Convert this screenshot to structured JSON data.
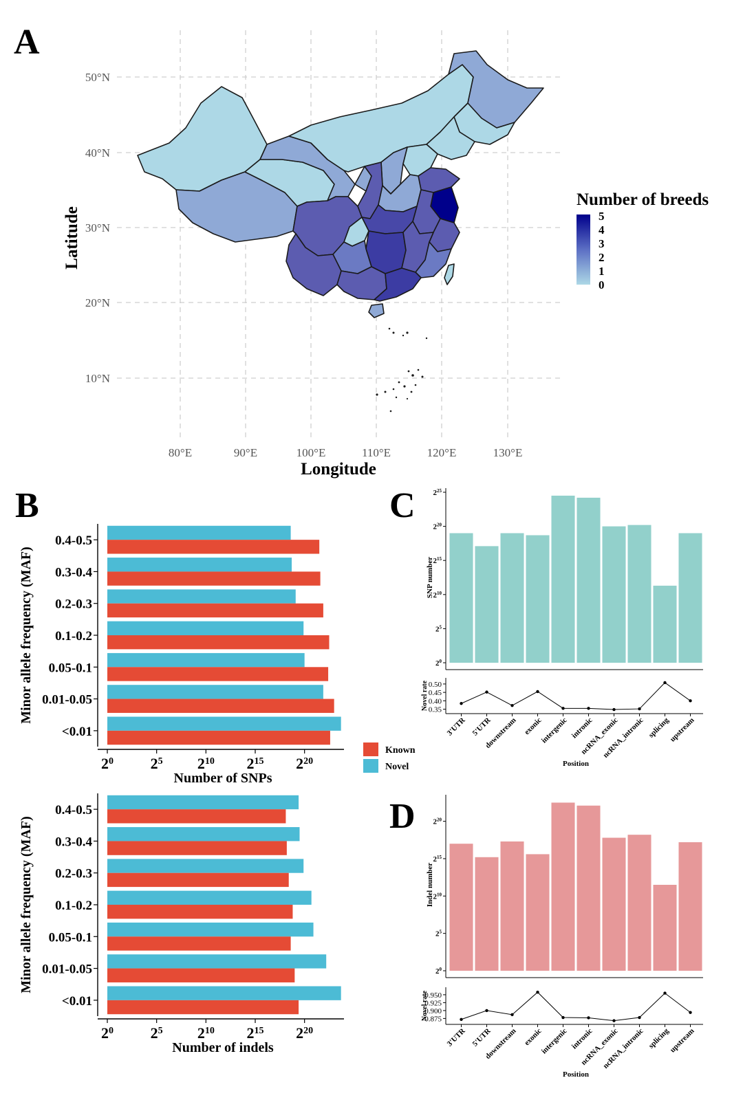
{
  "panel_labels": {
    "a": "A",
    "b": "B",
    "c": "C",
    "d": "D"
  },
  "colors": {
    "known": "#e54b35",
    "novel": "#4cbbd5",
    "snp_bar": "#92d0cb",
    "indel_bar": "#e69899",
    "grid": "#cfcfcf",
    "map_ramp_low": "#add8e6",
    "map_ramp_high": "#00008b"
  },
  "map": {
    "title": "",
    "xlabel": "Longitude",
    "ylabel": "Latitude",
    "x_ticks": [
      "80°E",
      "90°E",
      "100°E",
      "110°E",
      "120°E",
      "130°E"
    ],
    "y_ticks": [
      "50°N",
      "40°N",
      "30°N",
      "20°N",
      "10°N"
    ],
    "legend_title": "Number of breeds",
    "legend_labels": [
      "5",
      "4",
      "3",
      "2",
      "1",
      "0"
    ]
  },
  "legend_bc": {
    "known": "Known",
    "novel": "Novel"
  },
  "chart_data": [
    {
      "id": "maf_snp",
      "type": "bar",
      "orientation": "horizontal",
      "title": "",
      "xlabel": "Number of SNPs",
      "ylabel": "Minor allele frequency (MAF)",
      "x_scale": "log2",
      "xlim": [
        0,
        24
      ],
      "x_ticks": [
        0,
        5,
        10,
        15,
        20
      ],
      "x_tick_labels": [
        "2",
        "2",
        "2",
        "2",
        "2"
      ],
      "x_tick_exps": [
        "0",
        "5",
        "10",
        "15",
        "20"
      ],
      "categories": [
        "0.4-0.5",
        "0.3-0.4",
        "0.2-0.3",
        "0.1-0.2",
        "0.05-0.1",
        "0.01-0.05",
        "<0.01"
      ],
      "series": [
        {
          "name": "Novel",
          "values": [
            18.6,
            18.7,
            19.1,
            19.9,
            20.0,
            21.9,
            23.7
          ]
        },
        {
          "name": "Known",
          "values": [
            21.5,
            21.6,
            21.9,
            22.5,
            22.4,
            23.0,
            22.6
          ]
        }
      ]
    },
    {
      "id": "maf_indel",
      "type": "bar",
      "orientation": "horizontal",
      "title": "",
      "xlabel": "Number of indels",
      "ylabel": "Minor allele frequency (MAF)",
      "x_scale": "log2",
      "xlim": [
        0,
        24
      ],
      "x_ticks": [
        0,
        5,
        10,
        15,
        20
      ],
      "x_tick_labels": [
        "2",
        "2",
        "2",
        "2",
        "2"
      ],
      "x_tick_exps": [
        "0",
        "5",
        "10",
        "15",
        "20"
      ],
      "categories": [
        "0.4-0.5",
        "0.3-0.4",
        "0.2-0.3",
        "0.1-0.2",
        "0.05-0.1",
        "0.01-0.05",
        "<0.01"
      ],
      "series": [
        {
          "name": "Novel",
          "values": [
            19.4,
            19.5,
            19.9,
            20.7,
            20.9,
            22.2,
            23.7
          ]
        },
        {
          "name": "Known",
          "values": [
            18.1,
            18.2,
            18.4,
            18.8,
            18.6,
            19.0,
            19.4
          ]
        }
      ]
    },
    {
      "id": "snp_position",
      "type": "bar",
      "title": "",
      "xlabel": "Position",
      "ylabel": "SNP number",
      "y_scale": "log2",
      "ylim": [
        0,
        25
      ],
      "y_ticks": [
        0,
        5,
        10,
        15,
        20,
        25
      ],
      "y_tick_labels": [
        "2",
        "2",
        "2",
        "2",
        "2",
        "2"
      ],
      "y_tick_exps": [
        "0",
        "5",
        "10",
        "15",
        "20",
        "25"
      ],
      "categories": [
        "3'UTR",
        "5'UTR",
        "downstream",
        "exonic",
        "intergenic",
        "intronic",
        "ncRNA_exonic",
        "ncRNA_intronic",
        "splicing",
        "upstream"
      ],
      "values": [
        19.0,
        17.1,
        19.0,
        18.7,
        24.5,
        24.2,
        20.0,
        20.2,
        11.3,
        19.0
      ],
      "novel_rate": {
        "type": "line",
        "ylabel": "Novel rate",
        "ylim": [
          0.34,
          0.52
        ],
        "y_ticks": [
          0.35,
          0.4,
          0.45,
          0.5
        ],
        "y_tick_labels": [
          "0.35",
          "0.40",
          "0.45",
          "0.50"
        ],
        "values": [
          0.384,
          0.452,
          0.372,
          0.455,
          0.355,
          0.355,
          0.348,
          0.352,
          0.508,
          0.4
        ]
      }
    },
    {
      "id": "indel_position",
      "type": "bar",
      "title": "",
      "xlabel": "Position",
      "ylabel": "Indel number",
      "y_scale": "log2",
      "ylim": [
        0,
        23
      ],
      "y_ticks": [
        0,
        5,
        10,
        15,
        20
      ],
      "y_tick_labels": [
        "2",
        "2",
        "2",
        "2",
        "2"
      ],
      "y_tick_exps": [
        "0",
        "5",
        "10",
        "15",
        "20"
      ],
      "categories": [
        "3'UTR",
        "5'UTR",
        "downstream",
        "exonic",
        "intergenic",
        "intronic",
        "ncRNA_exonic",
        "ncRNA_intronic",
        "splicing",
        "upstream"
      ],
      "values": [
        17.0,
        15.2,
        17.3,
        15.6,
        22.5,
        22.1,
        17.8,
        18.2,
        11.5,
        17.2
      ],
      "novel_rate": {
        "type": "line",
        "ylabel": "Novel rate",
        "ylim": [
          0.865,
          0.965
        ],
        "y_ticks": [
          0.875,
          0.9,
          0.925,
          0.95
        ],
        "y_tick_labels": [
          "0.875",
          "0.900",
          "0.925",
          "0.950"
        ],
        "values": [
          0.872,
          0.9,
          0.887,
          0.958,
          0.878,
          0.877,
          0.868,
          0.878,
          0.955,
          0.894
        ]
      }
    }
  ]
}
